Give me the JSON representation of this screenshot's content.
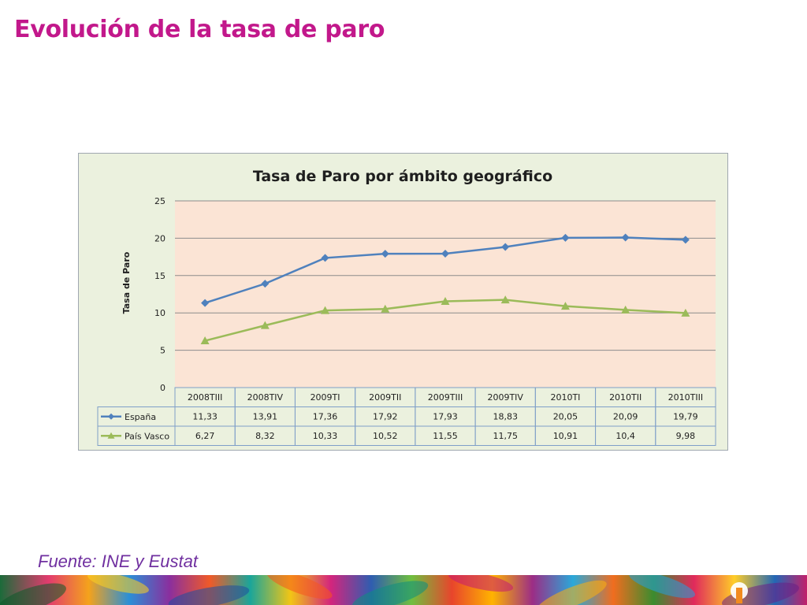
{
  "slide": {
    "title": "Evolución de la tasa de paro",
    "source": "Fuente: INE y Eustat"
  },
  "chart_data": {
    "type": "line",
    "title": "Tasa de Paro por ámbito geográfico",
    "xlabel": "",
    "ylabel": "Tasa de Paro",
    "ylim": [
      0,
      25
    ],
    "yticks": [
      0,
      5,
      10,
      15,
      20,
      25
    ],
    "grid": true,
    "legend": "data-table",
    "categories": [
      "2008TIII",
      "2008TIV",
      "2009TI",
      "2009TII",
      "2009TIII",
      "2009TIV",
      "2010TI",
      "2010TII",
      "2010TIII"
    ],
    "series": [
      {
        "name": "España",
        "marker": "diamond",
        "color": "#4f81bd",
        "values": [
          11.33,
          13.91,
          17.36,
          17.92,
          17.93,
          18.83,
          20.05,
          20.09,
          19.79
        ],
        "labels": [
          "11,33",
          "13,91",
          "17,36",
          "17,92",
          "17,93",
          "18,83",
          "20,05",
          "20,09",
          "19,79"
        ]
      },
      {
        "name": "País Vasco",
        "marker": "triangle",
        "color": "#9bbb59",
        "values": [
          6.27,
          8.32,
          10.33,
          10.52,
          11.55,
          11.75,
          10.91,
          10.4,
          9.98
        ],
        "labels": [
          "6,27",
          "8,32",
          "10,33",
          "10,52",
          "11,55",
          "11,75",
          "10,91",
          "10,4",
          "9,98"
        ]
      }
    ],
    "colors": {
      "plot_background": "#fbe4d5",
      "chart_background": "#ebf1de",
      "gridline": "#8c8c8c",
      "table_border": "#7f9fc8"
    }
  }
}
